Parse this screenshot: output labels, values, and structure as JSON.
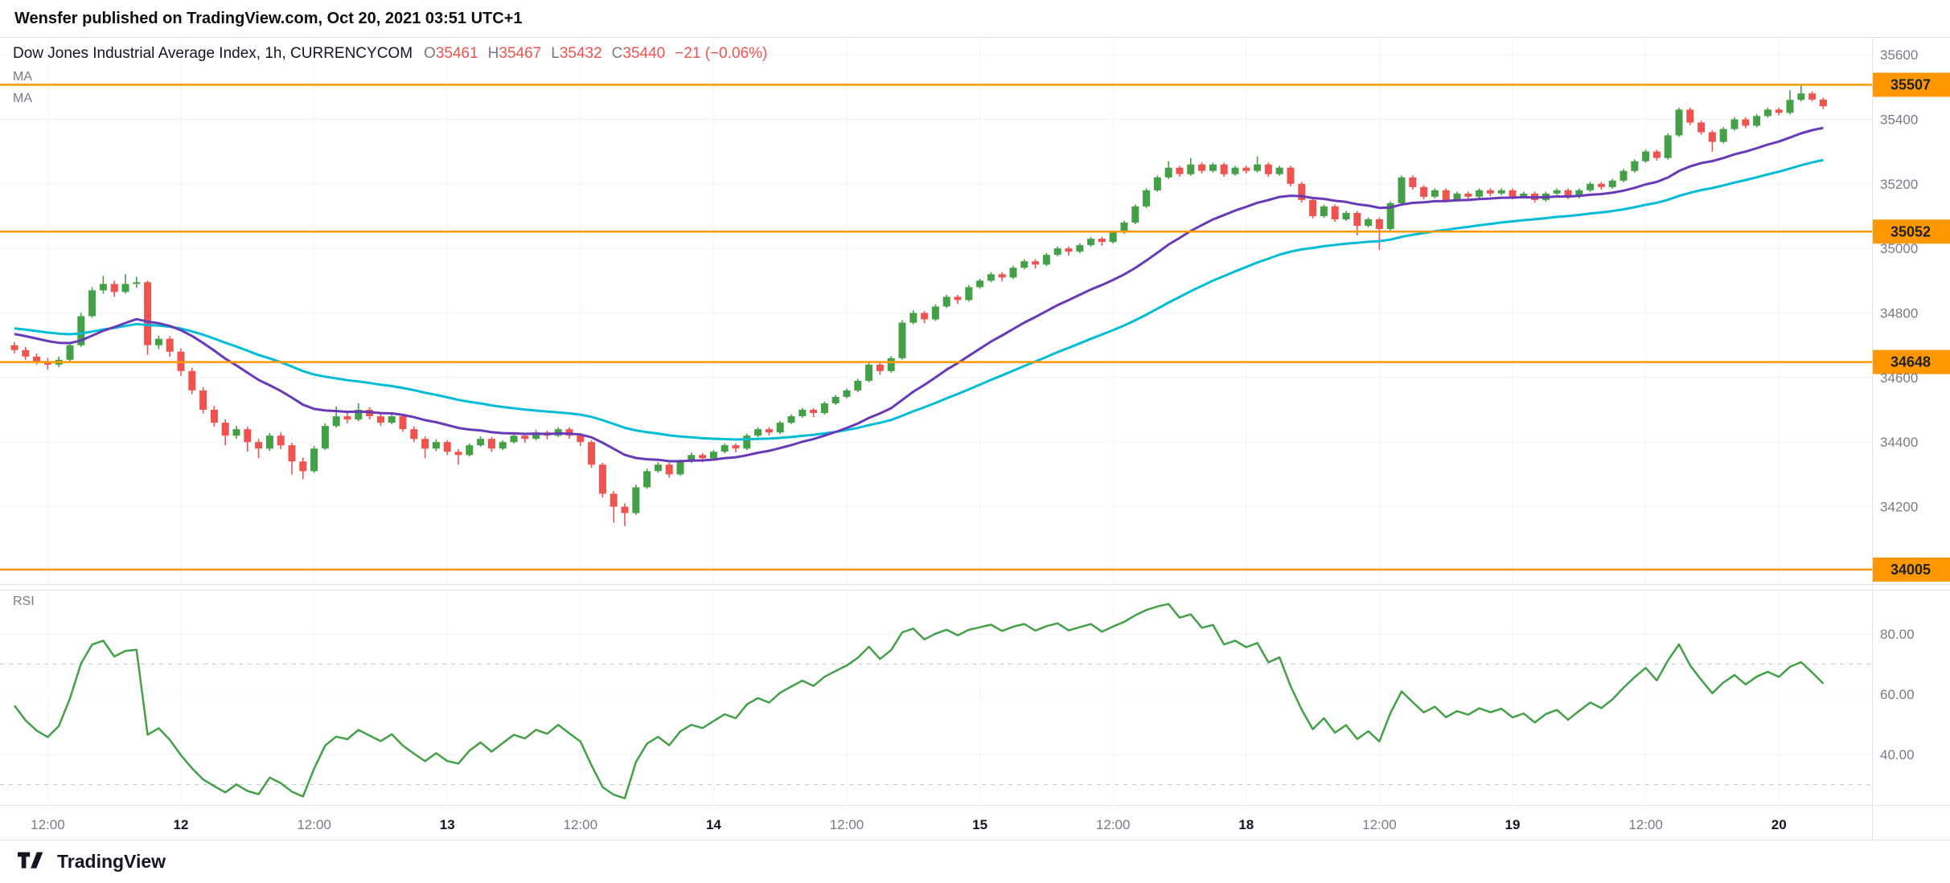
{
  "attribution": "Wensfer published on TradingView.com, Oct 20, 2021 03:51 UTC+1",
  "footer": {
    "brand": "TradingView"
  },
  "legend": {
    "title": "Dow Jones Industrial Average Index, 1h, CURRENCYCOM",
    "o_label": "O",
    "o_value": "35461",
    "h_label": "H",
    "h_value": "35467",
    "l_label": "L",
    "l_value": "35432",
    "c_label": "C",
    "c_value": "35440",
    "change": "−21 (−0.06%)",
    "ma1_label": "MA",
    "ma2_label": "MA"
  },
  "chart_data": {
    "type": "candlestick",
    "symbol": "Dow Jones Industrial Average Index",
    "interval": "1h",
    "exchange": "CURRENCYCOM",
    "last_ohlc": {
      "open": 35461,
      "high": 35467,
      "low": 35432,
      "close": 35440,
      "change": -21,
      "change_pct": -0.06
    },
    "colors": {
      "up": "#43a047",
      "down": "#ef5350",
      "grid": "#f0f3fa",
      "axis_text": "#787b86"
    },
    "y_axis": {
      "min": 33960,
      "max": 35655,
      "ticks": [
        35600,
        35400,
        35200,
        35000,
        34800,
        34600,
        34400,
        34200
      ]
    },
    "x_axis": {
      "labels": [
        {
          "i": 3,
          "t": "12:00"
        },
        {
          "i": 15,
          "t": "12"
        },
        {
          "i": 27,
          "t": "12:00"
        },
        {
          "i": 39,
          "t": "13"
        },
        {
          "i": 51,
          "t": "12:00"
        },
        {
          "i": 63,
          "t": "14"
        },
        {
          "i": 75,
          "t": "12:00"
        },
        {
          "i": 87,
          "t": "15"
        },
        {
          "i": 99,
          "t": "12:00"
        },
        {
          "i": 111,
          "t": "18"
        },
        {
          "i": 123,
          "t": "12:00"
        },
        {
          "i": 135,
          "t": "19"
        },
        {
          "i": 147,
          "t": "12:00"
        },
        {
          "i": 159,
          "t": "20"
        }
      ]
    },
    "horizontal_lines": {
      "color": "#ff9800",
      "levels": [
        35507,
        35052,
        34648,
        34005
      ]
    },
    "overlays": [
      {
        "name": "MA fast",
        "type": "ema",
        "period": 20,
        "seed": 34740,
        "color": "#673ab7"
      },
      {
        "name": "MA slow",
        "type": "ema",
        "period": 45,
        "seed": 34755,
        "color": "#00bcd4"
      }
    ],
    "rsi": {
      "label": "RSI",
      "period": 14,
      "color": "#43a047",
      "ticks": [
        80,
        60,
        40
      ],
      "bands": [
        70,
        30
      ]
    },
    "candles": [
      [
        34700,
        34710,
        34675,
        34685
      ],
      [
        34685,
        34695,
        34655,
        34665
      ],
      [
        34665,
        34675,
        34640,
        34650
      ],
      [
        34650,
        34660,
        34625,
        34640
      ],
      [
        34640,
        34665,
        34632,
        34655
      ],
      [
        34655,
        34710,
        34650,
        34700
      ],
      [
        34700,
        34800,
        34695,
        34790
      ],
      [
        34790,
        34880,
        34785,
        34870
      ],
      [
        34870,
        34915,
        34860,
        34890
      ],
      [
        34890,
        34900,
        34850,
        34865
      ],
      [
        34865,
        34920,
        34860,
        34890
      ],
      [
        34890,
        34912,
        34878,
        34895
      ],
      [
        34895,
        34900,
        34670,
        34700
      ],
      [
        34700,
        34730,
        34688,
        34720
      ],
      [
        34720,
        34728,
        34665,
        34680
      ],
      [
        34680,
        34690,
        34605,
        34620
      ],
      [
        34620,
        34630,
        34548,
        34560
      ],
      [
        34560,
        34570,
        34488,
        34500
      ],
      [
        34500,
        34512,
        34448,
        34460
      ],
      [
        34460,
        34470,
        34390,
        34420
      ],
      [
        34420,
        34450,
        34410,
        34440
      ],
      [
        34440,
        34448,
        34370,
        34400
      ],
      [
        34400,
        34410,
        34350,
        34380
      ],
      [
        34380,
        34428,
        34372,
        34420
      ],
      [
        34420,
        34430,
        34378,
        34390
      ],
      [
        34390,
        34398,
        34300,
        34340
      ],
      [
        34340,
        34352,
        34285,
        34310
      ],
      [
        34310,
        34388,
        34305,
        34380
      ],
      [
        34380,
        34458,
        34375,
        34450
      ],
      [
        34450,
        34510,
        34445,
        34480
      ],
      [
        34480,
        34490,
        34458,
        34470
      ],
      [
        34470,
        34520,
        34465,
        34500
      ],
      [
        34500,
        34508,
        34470,
        34480
      ],
      [
        34480,
        34488,
        34450,
        34460
      ],
      [
        34460,
        34490,
        34455,
        34480
      ],
      [
        34480,
        34486,
        34432,
        34440
      ],
      [
        34440,
        34448,
        34400,
        34410
      ],
      [
        34410,
        34418,
        34350,
        34380
      ],
      [
        34380,
        34408,
        34372,
        34400
      ],
      [
        34400,
        34406,
        34360,
        34370
      ],
      [
        34370,
        34378,
        34330,
        34360
      ],
      [
        34360,
        34396,
        34355,
        34390
      ],
      [
        34390,
        34418,
        34385,
        34410
      ],
      [
        34410,
        34416,
        34370,
        34380
      ],
      [
        34380,
        34406,
        34375,
        34400
      ],
      [
        34400,
        34428,
        34395,
        34420
      ],
      [
        34420,
        34426,
        34398,
        34410
      ],
      [
        34410,
        34438,
        34405,
        34430
      ],
      [
        34430,
        34436,
        34408,
        34420
      ],
      [
        34420,
        34446,
        34415,
        34440
      ],
      [
        34440,
        34446,
        34410,
        34420
      ],
      [
        34420,
        34428,
        34388,
        34400
      ],
      [
        34400,
        34406,
        34320,
        34330
      ],
      [
        34330,
        34336,
        34228,
        34240
      ],
      [
        34240,
        34248,
        34150,
        34200
      ],
      [
        34200,
        34210,
        34140,
        34180
      ],
      [
        34180,
        34268,
        34175,
        34260
      ],
      [
        34260,
        34318,
        34255,
        34310
      ],
      [
        34310,
        34338,
        34305,
        34330
      ],
      [
        34330,
        34336,
        34290,
        34300
      ],
      [
        34300,
        34346,
        34295,
        34340
      ],
      [
        34340,
        34368,
        34335,
        34360
      ],
      [
        34360,
        34366,
        34338,
        34350
      ],
      [
        34350,
        34376,
        34345,
        34370
      ],
      [
        34370,
        34396,
        34365,
        34390
      ],
      [
        34390,
        34396,
        34368,
        34380
      ],
      [
        34380,
        34426,
        34375,
        34420
      ],
      [
        34420,
        34446,
        34415,
        34440
      ],
      [
        34440,
        34446,
        34420,
        34430
      ],
      [
        34430,
        34466,
        34425,
        34460
      ],
      [
        34460,
        34486,
        34455,
        34480
      ],
      [
        34480,
        34506,
        34475,
        34500
      ],
      [
        34500,
        34506,
        34478,
        34490
      ],
      [
        34490,
        34526,
        34485,
        34520
      ],
      [
        34520,
        34546,
        34515,
        34540
      ],
      [
        34540,
        34566,
        34535,
        34560
      ],
      [
        34560,
        34596,
        34555,
        34590
      ],
      [
        34590,
        34646,
        34585,
        34640
      ],
      [
        34640,
        34648,
        34608,
        34620
      ],
      [
        34620,
        34666,
        34615,
        34660
      ],
      [
        34660,
        34778,
        34655,
        34770
      ],
      [
        34770,
        34808,
        34765,
        34800
      ],
      [
        34800,
        34806,
        34768,
        34780
      ],
      [
        34780,
        34826,
        34775,
        34820
      ],
      [
        34820,
        34856,
        34815,
        34850
      ],
      [
        34850,
        34856,
        34828,
        34840
      ],
      [
        34840,
        34886,
        34835,
        34880
      ],
      [
        34880,
        34906,
        34875,
        34900
      ],
      [
        34900,
        34926,
        34895,
        34920
      ],
      [
        34920,
        34926,
        34898,
        34910
      ],
      [
        34910,
        34946,
        34905,
        34940
      ],
      [
        34940,
        34966,
        34935,
        34960
      ],
      [
        34960,
        34966,
        34938,
        34950
      ],
      [
        34950,
        34986,
        34945,
        34980
      ],
      [
        34980,
        35006,
        34975,
        35000
      ],
      [
        35000,
        35006,
        34978,
        34990
      ],
      [
        34990,
        35016,
        34985,
        35010
      ],
      [
        35010,
        35036,
        35005,
        35030
      ],
      [
        35030,
        35036,
        35008,
        35020
      ],
      [
        35020,
        35056,
        35015,
        35050
      ],
      [
        35050,
        35086,
        35045,
        35080
      ],
      [
        35080,
        35136,
        35075,
        35130
      ],
      [
        35130,
        35186,
        35125,
        35180
      ],
      [
        35180,
        35226,
        35175,
        35220
      ],
      [
        35220,
        35270,
        35215,
        35250
      ],
      [
        35250,
        35256,
        35222,
        35230
      ],
      [
        35230,
        35280,
        35225,
        35260
      ],
      [
        35260,
        35266,
        35232,
        35240
      ],
      [
        35240,
        35266,
        35235,
        35260
      ],
      [
        35260,
        35266,
        35222,
        35230
      ],
      [
        35230,
        35256,
        35225,
        35250
      ],
      [
        35250,
        35256,
        35232,
        35240
      ],
      [
        35240,
        35285,
        35235,
        35260
      ],
      [
        35260,
        35266,
        35222,
        35230
      ],
      [
        35230,
        35256,
        35225,
        35250
      ],
      [
        35250,
        35256,
        35192,
        35200
      ],
      [
        35200,
        35206,
        35142,
        35150
      ],
      [
        35150,
        35156,
        35092,
        35100
      ],
      [
        35100,
        35136,
        35095,
        35130
      ],
      [
        35130,
        35136,
        35082,
        35090
      ],
      [
        35090,
        35116,
        35085,
        35110
      ],
      [
        35110,
        35116,
        35040,
        35070
      ],
      [
        35070,
        35096,
        35065,
        35090
      ],
      [
        35090,
        35096,
        34995,
        35060
      ],
      [
        35060,
        35146,
        35055,
        35140
      ],
      [
        35140,
        35226,
        35135,
        35220
      ],
      [
        35220,
        35226,
        35182,
        35190
      ],
      [
        35190,
        35196,
        35152,
        35160
      ],
      [
        35160,
        35186,
        35155,
        35180
      ],
      [
        35180,
        35186,
        35142,
        35150
      ],
      [
        35150,
        35176,
        35145,
        35170
      ],
      [
        35170,
        35176,
        35152,
        35160
      ],
      [
        35160,
        35186,
        35155,
        35180
      ],
      [
        35180,
        35186,
        35162,
        35170
      ],
      [
        35170,
        35186,
        35165,
        35180
      ],
      [
        35180,
        35186,
        35152,
        35160
      ],
      [
        35160,
        35176,
        35155,
        35170
      ],
      [
        35170,
        35176,
        35142,
        35150
      ],
      [
        35150,
        35176,
        35145,
        35170
      ],
      [
        35170,
        35186,
        35165,
        35180
      ],
      [
        35180,
        35186,
        35152,
        35160
      ],
      [
        35160,
        35186,
        35155,
        35180
      ],
      [
        35180,
        35206,
        35175,
        35200
      ],
      [
        35200,
        35206,
        35182,
        35190
      ],
      [
        35190,
        35216,
        35185,
        35210
      ],
      [
        35210,
        35246,
        35205,
        35240
      ],
      [
        35240,
        35276,
        35235,
        35270
      ],
      [
        35270,
        35306,
        35265,
        35300
      ],
      [
        35300,
        35306,
        35272,
        35280
      ],
      [
        35280,
        35356,
        35275,
        35350
      ],
      [
        35350,
        35436,
        35345,
        35430
      ],
      [
        35430,
        35436,
        35382,
        35390
      ],
      [
        35390,
        35396,
        35352,
        35360
      ],
      [
        35360,
        35366,
        35300,
        35330
      ],
      [
        35330,
        35376,
        35325,
        35370
      ],
      [
        35370,
        35406,
        35365,
        35400
      ],
      [
        35400,
        35406,
        35372,
        35380
      ],
      [
        35380,
        35416,
        35375,
        35410
      ],
      [
        35410,
        35436,
        35405,
        35430
      ],
      [
        35430,
        35436,
        35412,
        35420
      ],
      [
        35420,
        35490,
        35415,
        35460
      ],
      [
        35460,
        35507,
        35455,
        35480
      ],
      [
        35480,
        35486,
        35455,
        35461
      ],
      [
        35461,
        35467,
        35432,
        35440
      ]
    ]
  }
}
